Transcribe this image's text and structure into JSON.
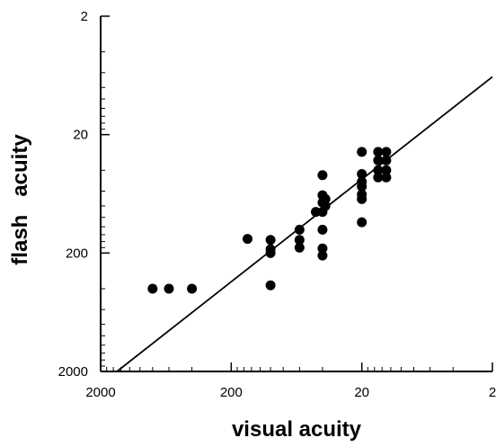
{
  "chart_data": {
    "type": "scatter",
    "xlabel": "visual acuity",
    "ylabel": "flash   acuity",
    "x_scale": "log",
    "y_scale": "log",
    "x_reversed": true,
    "y_reversed": true,
    "xlim": [
      2000,
      2
    ],
    "ylim": [
      2,
      2000
    ],
    "x_ticks": [
      {
        "value": 2000,
        "label": "2000"
      },
      {
        "value": 200,
        "label": "200"
      },
      {
        "value": 20,
        "label": "20"
      },
      {
        "value": 2,
        "label": "2"
      }
    ],
    "y_ticks": [
      {
        "value": 2,
        "label": "2"
      },
      {
        "value": 20,
        "label": "20"
      },
      {
        "value": 200,
        "label": "200"
      },
      {
        "value": 2000,
        "label": "2000"
      }
    ],
    "fit_line": {
      "x": [
        1500,
        2
      ],
      "y": [
        2000,
        6.5
      ]
    },
    "points": [
      {
        "x": 800,
        "y": 400
      },
      {
        "x": 600,
        "y": 400
      },
      {
        "x": 400,
        "y": 400
      },
      {
        "x": 100,
        "y": 375
      },
      {
        "x": 150,
        "y": 152
      },
      {
        "x": 100,
        "y": 155
      },
      {
        "x": 100,
        "y": 200
      },
      {
        "x": 100,
        "y": 186
      },
      {
        "x": 60,
        "y": 127
      },
      {
        "x": 60,
        "y": 155
      },
      {
        "x": 60,
        "y": 180
      },
      {
        "x": 45,
        "y": 90
      },
      {
        "x": 40,
        "y": 90
      },
      {
        "x": 40,
        "y": 75
      },
      {
        "x": 40,
        "y": 65
      },
      {
        "x": 40,
        "y": 44
      },
      {
        "x": 40,
        "y": 127
      },
      {
        "x": 40,
        "y": 183
      },
      {
        "x": 40,
        "y": 210
      },
      {
        "x": 38,
        "y": 70
      },
      {
        "x": 38,
        "y": 80
      },
      {
        "x": 20,
        "y": 28
      },
      {
        "x": 20,
        "y": 43
      },
      {
        "x": 20,
        "y": 50
      },
      {
        "x": 20,
        "y": 55
      },
      {
        "x": 20,
        "y": 64
      },
      {
        "x": 20,
        "y": 70
      },
      {
        "x": 20,
        "y": 110
      },
      {
        "x": 15,
        "y": 28
      },
      {
        "x": 15,
        "y": 33
      },
      {
        "x": 15,
        "y": 40
      },
      {
        "x": 15,
        "y": 46
      },
      {
        "x": 13,
        "y": 28
      },
      {
        "x": 13,
        "y": 33
      },
      {
        "x": 13,
        "y": 40
      },
      {
        "x": 13,
        "y": 46
      }
    ]
  }
}
